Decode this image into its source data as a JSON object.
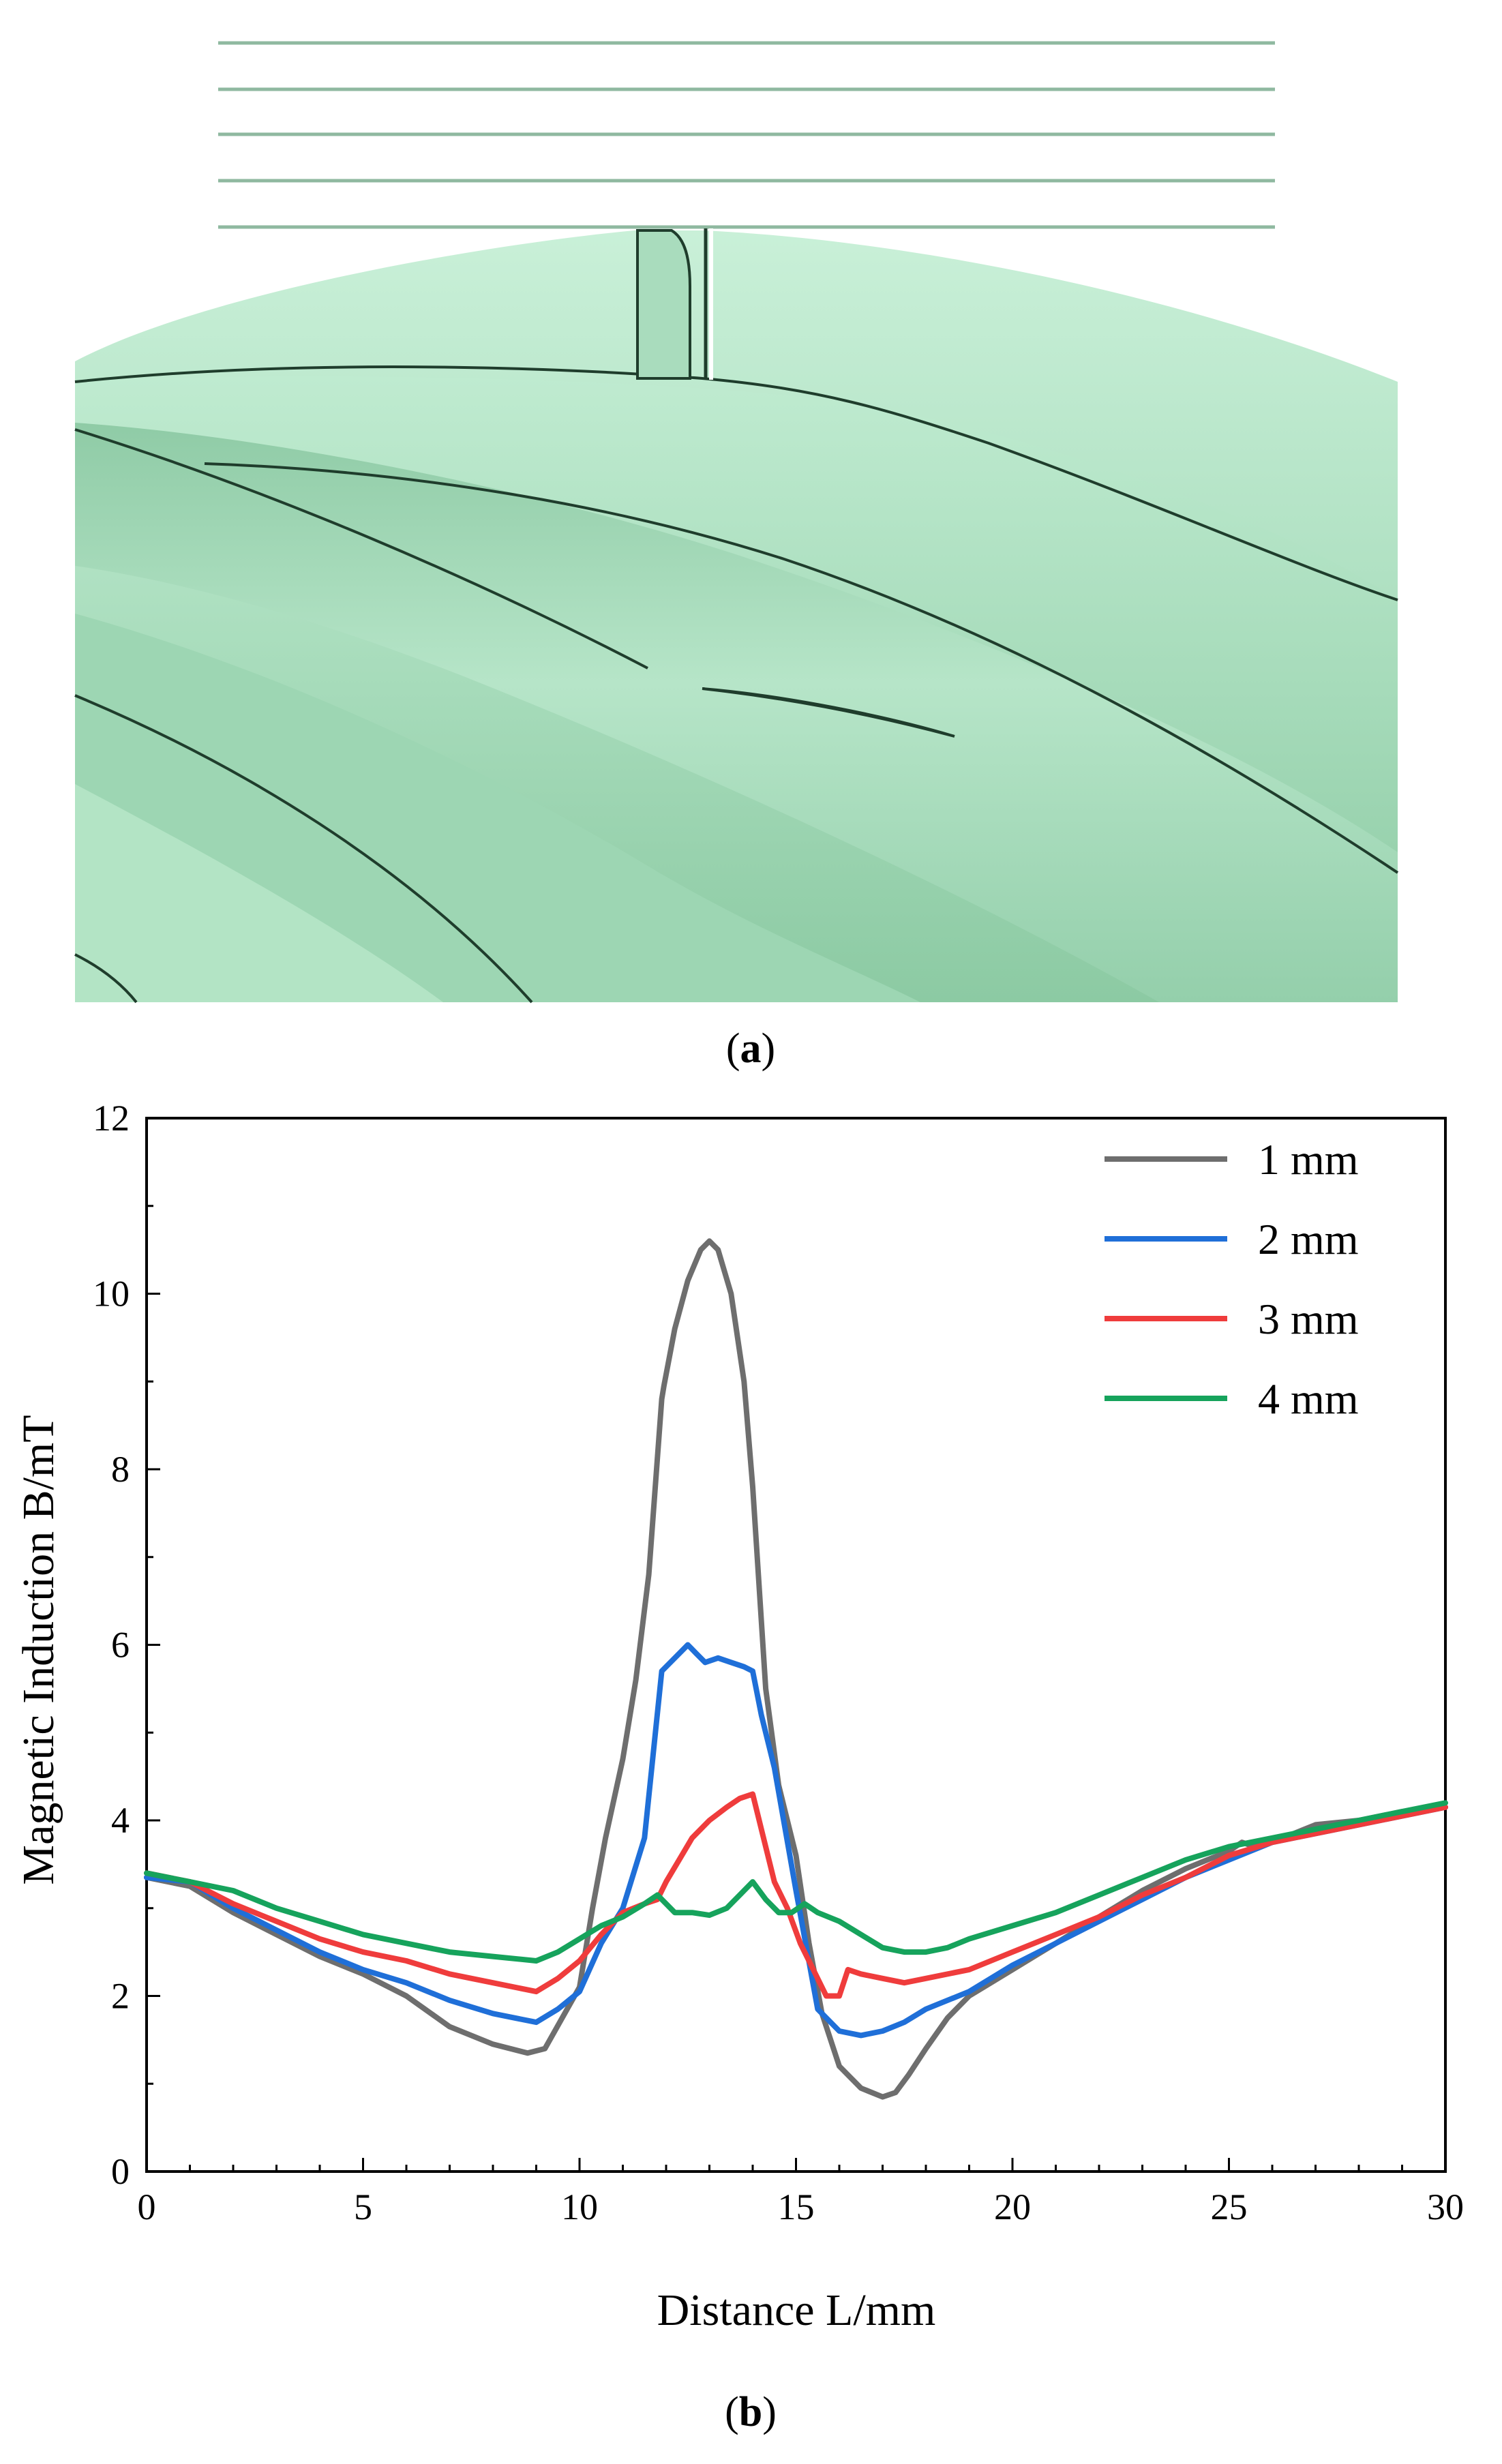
{
  "panel_a": {
    "caption": "(a)",
    "caption_letter": "a",
    "colors": {
      "surface_light": "#b5e7c8",
      "surface_mid": "#9fd7b4",
      "surface_dark": "#7bbf98",
      "edge_line": "#1f3d2c",
      "stack_line": "#8fb9a0"
    }
  },
  "panel_b": {
    "caption": "(b)",
    "caption_letter": "b"
  },
  "chart_data": {
    "type": "line",
    "title": "",
    "xlabel": "Distance L/mm",
    "ylabel": "Magnetic Induction B/mT",
    "xlim": [
      0,
      30
    ],
    "ylim": [
      0,
      12
    ],
    "xticks": [
      0,
      5,
      10,
      15,
      20,
      25,
      30
    ],
    "yticks": [
      0,
      2,
      4,
      6,
      8,
      10,
      12
    ],
    "x_minor_step": 1,
    "y_minor_step": 1,
    "grid": false,
    "legend_position": "top-right",
    "series": [
      {
        "name": "1 mm",
        "color": "#6e6e6e",
        "x": [
          0,
          1,
          2,
          3,
          4,
          5,
          6,
          7,
          8,
          8.8,
          9.2,
          9.6,
          10,
          10.3,
          10.6,
          11,
          11.3,
          11.6,
          11.9,
          11.95,
          12.2,
          12.5,
          12.8,
          13,
          13.2,
          13.5,
          13.8,
          14,
          14.3,
          14.6,
          15,
          15.3,
          15.6,
          16,
          16.5,
          17,
          17.3,
          17.6,
          18,
          18.5,
          19,
          19.5,
          20,
          21,
          22,
          23,
          24,
          25,
          25.3,
          25.6,
          26,
          27,
          28,
          29,
          30
        ],
        "y": [
          3.35,
          3.25,
          2.95,
          2.7,
          2.45,
          2.25,
          2.0,
          1.65,
          1.45,
          1.35,
          1.4,
          1.75,
          2.1,
          3.0,
          3.8,
          4.7,
          5.6,
          6.8,
          8.8,
          8.95,
          9.6,
          10.15,
          10.5,
          10.6,
          10.5,
          10.0,
          9.0,
          7.8,
          5.5,
          4.4,
          3.6,
          2.6,
          1.8,
          1.2,
          0.95,
          0.85,
          0.9,
          1.1,
          1.4,
          1.75,
          2.0,
          2.15,
          2.3,
          2.6,
          2.9,
          3.2,
          3.45,
          3.65,
          3.75,
          3.7,
          3.75,
          3.95,
          4.0,
          4.1,
          4.15
        ]
      },
      {
        "name": "2 mm",
        "color": "#1f6fd8",
        "x": [
          0,
          1,
          2,
          3,
          4,
          5,
          6,
          7,
          8,
          9,
          9.5,
          10,
          10.5,
          11,
          11.5,
          11.9,
          12.2,
          12.5,
          12.7,
          12.9,
          13.2,
          13.5,
          13.8,
          14,
          14.2,
          14.5,
          15,
          15.5,
          16,
          16.5,
          17,
          17.5,
          18,
          19,
          20,
          21,
          22,
          23,
          24,
          25,
          26,
          27,
          28,
          29,
          30
        ],
        "y": [
          3.35,
          3.3,
          3.0,
          2.75,
          2.5,
          2.3,
          2.15,
          1.95,
          1.8,
          1.7,
          1.85,
          2.05,
          2.6,
          3.0,
          3.8,
          5.7,
          5.85,
          6.0,
          5.9,
          5.8,
          5.85,
          5.8,
          5.75,
          5.7,
          5.2,
          4.6,
          3.2,
          1.85,
          1.6,
          1.55,
          1.6,
          1.7,
          1.85,
          2.05,
          2.35,
          2.6,
          2.85,
          3.1,
          3.35,
          3.55,
          3.75,
          3.85,
          3.95,
          4.05,
          4.15
        ]
      },
      {
        "name": "3 mm",
        "color": "#ef3c3c",
        "x": [
          0,
          1,
          2,
          3,
          4,
          5,
          6,
          7,
          8,
          9,
          9.5,
          10,
          10.5,
          11,
          11.5,
          11.8,
          12,
          12.3,
          12.6,
          13,
          13.4,
          13.7,
          14,
          14.2,
          14.5,
          14.8,
          15.1,
          15.4,
          15.7,
          16,
          16.2,
          16.5,
          17,
          17.5,
          18,
          19,
          20,
          21,
          22,
          23,
          24,
          25,
          26,
          27,
          28,
          29,
          30
        ],
        "y": [
          3.4,
          3.3,
          3.05,
          2.85,
          2.65,
          2.5,
          2.4,
          2.25,
          2.15,
          2.05,
          2.2,
          2.4,
          2.7,
          2.95,
          3.05,
          3.1,
          3.3,
          3.55,
          3.8,
          4.0,
          4.15,
          4.25,
          4.3,
          3.9,
          3.3,
          3.0,
          2.6,
          2.3,
          2.0,
          2.0,
          2.3,
          2.25,
          2.2,
          2.15,
          2.2,
          2.3,
          2.5,
          2.7,
          2.9,
          3.15,
          3.35,
          3.6,
          3.75,
          3.85,
          3.95,
          4.05,
          4.15
        ]
      },
      {
        "name": "4 mm",
        "color": "#16a35c",
        "x": [
          0,
          1,
          2,
          3,
          4,
          5,
          6,
          7,
          8,
          9,
          9.5,
          10,
          10.5,
          11,
          11.5,
          11.8,
          12.2,
          12.6,
          13,
          13.4,
          13.7,
          14,
          14.3,
          14.6,
          14.9,
          15.2,
          15.5,
          16,
          16.5,
          17,
          17.5,
          18,
          18.5,
          19,
          20,
          21,
          22,
          23,
          24,
          25,
          26,
          27,
          28,
          29,
          30
        ],
        "y": [
          3.4,
          3.3,
          3.2,
          3.0,
          2.85,
          2.7,
          2.6,
          2.5,
          2.45,
          2.4,
          2.5,
          2.65,
          2.8,
          2.9,
          3.05,
          3.15,
          2.95,
          2.95,
          2.92,
          3.0,
          3.15,
          3.3,
          3.1,
          2.95,
          2.95,
          3.05,
          2.95,
          2.85,
          2.7,
          2.55,
          2.5,
          2.5,
          2.55,
          2.65,
          2.8,
          2.95,
          3.15,
          3.35,
          3.55,
          3.7,
          3.8,
          3.9,
          4.0,
          4.1,
          4.2
        ]
      }
    ]
  }
}
